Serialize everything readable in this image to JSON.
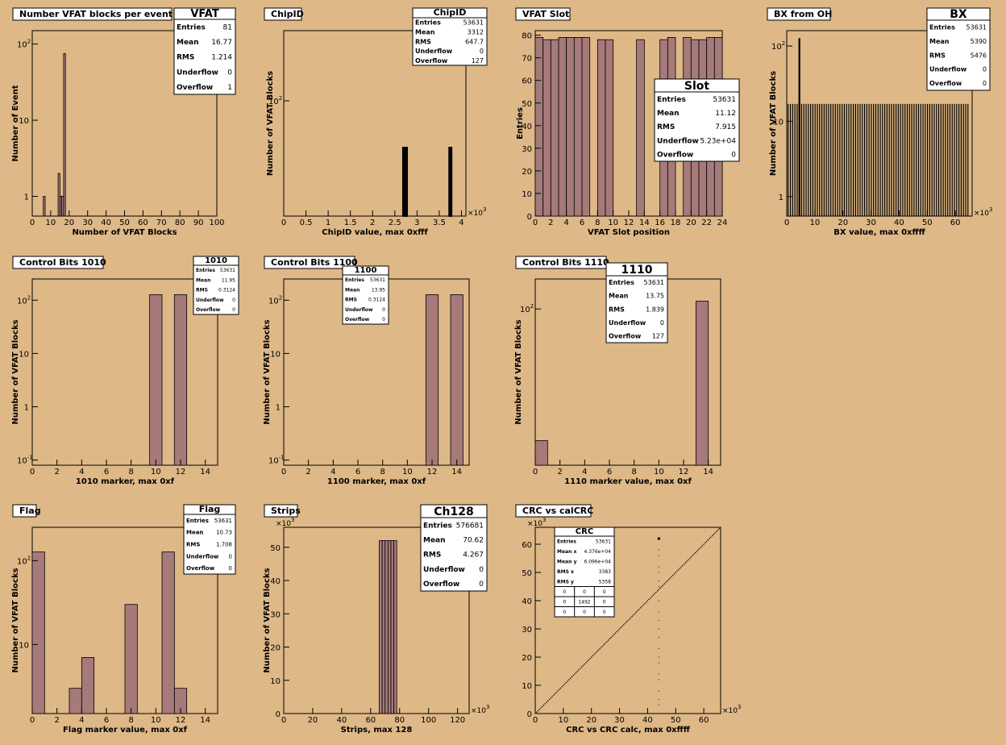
{
  "chart_data": [
    {
      "id": "vfat",
      "type": "bar",
      "title": "Number VFAT blocks per event",
      "xlabel": "Number of VFAT Blocks",
      "ylabel": "Number of Event",
      "log_y": true,
      "xlim": [
        0,
        100
      ],
      "ylim": [
        0.55,
        150
      ],
      "fill": true,
      "xticks": [
        "0",
        "10",
        "20",
        "30",
        "40",
        "50",
        "60",
        "70",
        "80",
        "90",
        "100"
      ],
      "yticks": [
        {
          "label": "1",
          "v": 1,
          "sup": ""
        },
        {
          "label": "10",
          "v": 10,
          "sup": ""
        },
        {
          "label": "10",
          "v": 100,
          "sup": "2"
        }
      ],
      "bars": [
        [
          6,
          7,
          1
        ],
        [
          14,
          15,
          2
        ],
        [
          15,
          16,
          1
        ],
        [
          16,
          17,
          1
        ],
        [
          17,
          18,
          75
        ]
      ],
      "stats": {
        "name": "VFAT",
        "rows": [
          [
            "Entries",
            "81"
          ],
          [
            "Mean",
            "16.77"
          ],
          [
            "RMS",
            "1.214"
          ],
          [
            "Underflow",
            "0"
          ],
          [
            "Overflow",
            "1"
          ]
        ]
      }
    },
    {
      "id": "chipid",
      "type": "bar",
      "title": "ChipID",
      "xlabel": "ChipID value, max 0xfff",
      "ylabel": "Number of VFAT Blocks",
      "log_y": true,
      "xlim": [
        0,
        4.1
      ],
      "ylim": [
        65,
        130
      ],
      "fill": false,
      "exponent": "3",
      "xticks": [
        "0",
        "0.5",
        "1",
        "1.5",
        "2",
        "2.5",
        "3",
        "3.5",
        "4"
      ],
      "yticks": [
        {
          "label": "10",
          "v": 100,
          "sup": "2"
        }
      ],
      "bars": [
        [
          2.68,
          2.7,
          84
        ],
        [
          2.7,
          2.72,
          84
        ],
        [
          2.72,
          2.74,
          84
        ],
        [
          2.74,
          2.76,
          84
        ],
        [
          2.76,
          2.78,
          84
        ],
        [
          3.72,
          3.74,
          84
        ],
        [
          3.74,
          3.76,
          84
        ],
        [
          3.76,
          3.78,
          84
        ]
      ],
      "stats": {
        "name": "ChipID",
        "rows": [
          [
            "Entries",
            "53631"
          ],
          [
            "Mean",
            "3312"
          ],
          [
            "RMS",
            "647.7"
          ],
          [
            "Underflow",
            "0"
          ],
          [
            "Overflow",
            "127"
          ]
        ]
      }
    },
    {
      "id": "slot",
      "type": "bar",
      "title": "VFAT Slot",
      "xlabel": "VFAT Slot position",
      "ylabel": "Entries",
      "log_y": false,
      "xlim": [
        0,
        24
      ],
      "ylim": [
        0,
        82
      ],
      "fill": true,
      "xticks": [
        "0",
        "2",
        "4",
        "6",
        "8",
        "10",
        "12",
        "14",
        "16",
        "18",
        "20",
        "22",
        "24"
      ],
      "yticks": [
        {
          "label": "0",
          "v": 0,
          "sup": ""
        },
        {
          "label": "10",
          "v": 10,
          "sup": ""
        },
        {
          "label": "20",
          "v": 20,
          "sup": ""
        },
        {
          "label": "30",
          "v": 30,
          "sup": ""
        },
        {
          "label": "40",
          "v": 40,
          "sup": ""
        },
        {
          "label": "50",
          "v": 50,
          "sup": ""
        },
        {
          "label": "60",
          "v": 60,
          "sup": ""
        },
        {
          "label": "70",
          "v": 70,
          "sup": ""
        },
        {
          "label": "80",
          "v": 80,
          "sup": ""
        }
      ],
      "bars": [
        [
          0,
          1,
          79
        ],
        [
          1,
          2,
          78
        ],
        [
          2,
          3,
          78
        ],
        [
          3,
          4,
          79
        ],
        [
          4,
          5,
          79
        ],
        [
          5,
          6,
          79
        ],
        [
          6,
          7,
          79
        ],
        [
          7,
          8,
          0
        ],
        [
          8,
          9,
          78
        ],
        [
          9,
          10,
          78
        ],
        [
          10,
          13,
          0
        ],
        [
          13,
          14,
          78
        ],
        [
          14,
          16,
          0
        ],
        [
          16,
          17,
          78
        ],
        [
          17,
          18,
          79
        ],
        [
          18,
          19,
          0
        ],
        [
          19,
          20,
          79
        ],
        [
          20,
          21,
          78
        ],
        [
          21,
          22,
          78
        ],
        [
          22,
          23,
          79
        ],
        [
          23,
          24,
          79
        ]
      ],
      "stats": {
        "name": "Slot",
        "rows": [
          [
            "Entries",
            "53631"
          ],
          [
            "Mean",
            "11.12"
          ],
          [
            "RMS",
            "7.915"
          ],
          [
            "Underflow",
            "5.23e+04"
          ],
          [
            "Overflow",
            "0"
          ]
        ]
      }
    },
    {
      "id": "bx",
      "type": "bar",
      "title": "BX from OH",
      "xlabel": "BX value, max 0xffff",
      "ylabel": "Number of VFAT Blocks",
      "log_y": true,
      "xlim": [
        0,
        66
      ],
      "ylim": [
        0.55,
        160
      ],
      "fill": false,
      "exponent": "3",
      "xticks": [
        "0",
        "10",
        "20",
        "30",
        "40",
        "50",
        "60"
      ],
      "yticks": [
        {
          "label": "1",
          "v": 1,
          "sup": ""
        },
        {
          "label": "10",
          "v": 10,
          "sup": ""
        },
        {
          "label": "10",
          "v": 100,
          "sup": "2"
        }
      ],
      "bx_spikes": {
        "start": 0.5,
        "step": 0.8,
        "count": 81,
        "height": 17,
        "big": [
          [
            4.5,
            127
          ]
        ]
      },
      "stats": {
        "name": "BX",
        "rows": [
          [
            "Entries",
            "53631"
          ],
          [
            "Mean",
            "5390"
          ],
          [
            "RMS",
            "5476"
          ],
          [
            "Underflow",
            "0"
          ],
          [
            "Overflow",
            "0"
          ]
        ]
      }
    },
    {
      "id": "c1010",
      "type": "bar",
      "title": "Control Bits 1010",
      "xlabel": "1010 marker, max 0xf",
      "ylabel": "Number of VFAT Blocks",
      "log_y": true,
      "xlim": [
        0,
        15
      ],
      "ylim": [
        0.08,
        250
      ],
      "fill": true,
      "xticks": [
        "0",
        "2",
        "4",
        "6",
        "8",
        "10",
        "12",
        "14"
      ],
      "yticks": [
        {
          "label": "10",
          "v": 0.1,
          "sup": "-1"
        },
        {
          "label": "1",
          "v": 1,
          "sup": ""
        },
        {
          "label": "10",
          "v": 10,
          "sup": ""
        },
        {
          "label": "10",
          "v": 100,
          "sup": "2"
        }
      ],
      "bars": [
        [
          9.5,
          10.5,
          127
        ],
        [
          11.5,
          12.5,
          127
        ]
      ],
      "stats": {
        "name": "1010",
        "rows": [
          [
            "Entries",
            "53631"
          ],
          [
            "Mean",
            "11.95"
          ],
          [
            "RMS",
            "0.3124"
          ],
          [
            "Underflow",
            "0"
          ],
          [
            "Overflow",
            "0"
          ]
        ]
      }
    },
    {
      "id": "c1100",
      "type": "bar",
      "title": "Control Bits 1100",
      "xlabel": "1100 marker, max 0xf",
      "ylabel": "Number of VFAT Blocks",
      "log_y": true,
      "xlim": [
        0,
        15
      ],
      "ylim": [
        0.08,
        250
      ],
      "fill": true,
      "xticks": [
        "0",
        "2",
        "4",
        "6",
        "8",
        "10",
        "12",
        "14"
      ],
      "yticks": [
        {
          "label": "10",
          "v": 0.1,
          "sup": "-1"
        },
        {
          "label": "1",
          "v": 1,
          "sup": ""
        },
        {
          "label": "10",
          "v": 10,
          "sup": ""
        },
        {
          "label": "10",
          "v": 100,
          "sup": "2"
        }
      ],
      "bars": [
        [
          11.5,
          12.5,
          127
        ],
        [
          13.5,
          14.5,
          127
        ]
      ],
      "stats": {
        "name": "1100",
        "rows": [
          [
            "Entries",
            "53631"
          ],
          [
            "Mean",
            "13.95"
          ],
          [
            "RMS",
            "0.3124"
          ],
          [
            "Underflow",
            "0"
          ],
          [
            "Overflow",
            "0"
          ]
        ]
      }
    },
    {
      "id": "c1110",
      "type": "bar",
      "title": "Control Bits 1110",
      "xlabel": "1110 marker value, max 0xf",
      "ylabel": "Number of VFAT Blocks",
      "log_y": true,
      "xlim": [
        0,
        15
      ],
      "ylim": [
        0.85,
        250
      ],
      "fill": true,
      "xticks": [
        "0",
        "2",
        "4",
        "6",
        "8",
        "10",
        "12",
        "14"
      ],
      "yticks": [
        {
          "label": "10",
          "v": 100,
          "sup": "2"
        }
      ],
      "bars": [
        [
          0,
          1,
          1.8
        ],
        [
          13,
          14,
          127
        ]
      ],
      "stats": {
        "name": "1110",
        "rows": [
          [
            "Entries",
            "53631"
          ],
          [
            "Mean",
            "13.75"
          ],
          [
            "RMS",
            "1.839"
          ],
          [
            "Underflow",
            "0"
          ],
          [
            "Overflow",
            "127"
          ]
        ]
      }
    },
    {
      "id": "flag",
      "type": "bar",
      "title": "Flag",
      "xlabel": "Flag marker value, max 0xf",
      "ylabel": "Number of VFAT Blocks",
      "log_y": true,
      "xlim": [
        0,
        15
      ],
      "ylim": [
        1.5,
        250
      ],
      "fill": true,
      "xticks": [
        "0",
        "2",
        "4",
        "6",
        "8",
        "10",
        "12",
        "14"
      ],
      "yticks": [
        {
          "label": "10",
          "v": 10,
          "sup": ""
        },
        {
          "label": "10",
          "v": 100,
          "sup": "2"
        }
      ],
      "bars": [
        [
          0,
          1,
          127
        ],
        [
          3,
          4,
          3
        ],
        [
          4,
          5,
          7
        ],
        [
          7.5,
          8.5,
          30
        ],
        [
          10.5,
          11.5,
          127
        ],
        [
          11.5,
          12.5,
          3
        ]
      ],
      "stats": {
        "name": "Flag",
        "rows": [
          [
            "Entries",
            "53631"
          ],
          [
            "Mean",
            "10.73"
          ],
          [
            "RMS",
            "1.708"
          ],
          [
            "Underflow",
            "0"
          ],
          [
            "Overflow",
            "0"
          ]
        ]
      }
    },
    {
      "id": "strips",
      "type": "bar",
      "title": "Strips",
      "xlabel": "Strips, max 128",
      "ylabel": "Number of VFAT Blocks",
      "log_y": false,
      "xlim": [
        0,
        128
      ],
      "ylim": [
        0,
        56
      ],
      "fill": true,
      "exponent": "3",
      "exponent_y": true,
      "xticks": [
        "0",
        "20",
        "40",
        "60",
        "80",
        "100",
        "120"
      ],
      "yticks": [
        {
          "label": "0",
          "v": 0,
          "sup": ""
        },
        {
          "label": "10",
          "v": 10,
          "sup": ""
        },
        {
          "label": "20",
          "v": 20,
          "sup": ""
        },
        {
          "label": "30",
          "v": 30,
          "sup": ""
        },
        {
          "label": "40",
          "v": 40,
          "sup": ""
        },
        {
          "label": "50",
          "v": 50,
          "sup": ""
        }
      ],
      "bars": [
        [
          66,
          68,
          52
        ],
        [
          68,
          70,
          52
        ],
        [
          70,
          72,
          52
        ],
        [
          72,
          74,
          52
        ],
        [
          74,
          76,
          52
        ],
        [
          76,
          78,
          52
        ]
      ],
      "stats": {
        "name": "Ch128",
        "rows": [
          [
            "Entries",
            "576681"
          ],
          [
            "Mean",
            "70.62"
          ],
          [
            "RMS",
            "4.267"
          ],
          [
            "Underflow",
            "0"
          ],
          [
            "Overflow",
            "0"
          ]
        ]
      }
    },
    {
      "id": "crc",
      "type": "scatter",
      "title": "CRC vs calCRC",
      "xlabel": "CRC vs CRC calc, max 0xffff",
      "ylabel": "",
      "log_y": false,
      "xlim": [
        0,
        66
      ],
      "ylim": [
        0,
        66
      ],
      "exponent": "3",
      "exponent_y": true,
      "xticks": [
        "0",
        "10",
        "20",
        "30",
        "40",
        "50",
        "60"
      ],
      "yticks": [
        {
          "label": "0",
          "v": 0,
          "sup": ""
        },
        {
          "label": "10",
          "v": 10,
          "sup": ""
        },
        {
          "label": "20",
          "v": 20,
          "sup": ""
        },
        {
          "label": "30",
          "v": 30,
          "sup": ""
        },
        {
          "label": "40",
          "v": 40,
          "sup": ""
        },
        {
          "label": "50",
          "v": 50,
          "sup": ""
        },
        {
          "label": "60",
          "v": 60,
          "sup": ""
        }
      ],
      "diagonal": {
        "from": 0.5,
        "to": 65.5,
        "step": 0.5
      },
      "vertical_points": {
        "x": 44,
        "ys": [
          3,
          5,
          8,
          12,
          14,
          18,
          20,
          23,
          27,
          30,
          33,
          36,
          40,
          45,
          47,
          50,
          52,
          56,
          58
        ]
      },
      "big_point": [
        44,
        62
      ],
      "stats": {
        "name": "CRC",
        "rows": [
          [
            "Entries",
            "53631"
          ],
          [
            "Mean x",
            "4.376e+04"
          ],
          [
            "Mean y",
            "6.096e+04"
          ],
          [
            "RMS x",
            "3383"
          ],
          [
            "RMS y",
            "5358"
          ]
        ],
        "grid": [
          [
            "0",
            "0",
            "0"
          ],
          [
            "0",
            "1492",
            "0"
          ],
          [
            "0",
            "0",
            "0"
          ]
        ]
      }
    }
  ]
}
